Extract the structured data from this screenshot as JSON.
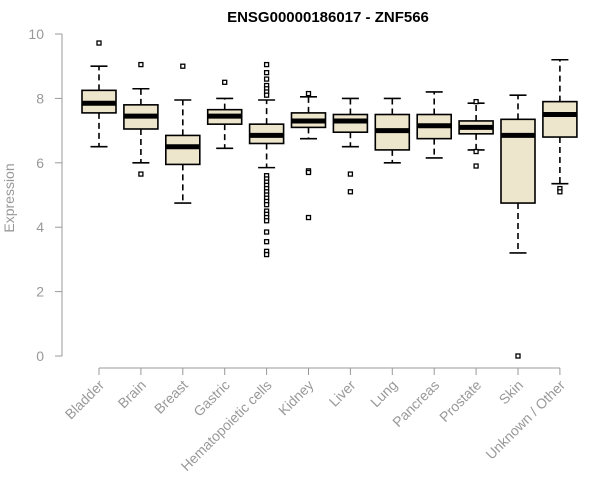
{
  "chart_data": {
    "type": "box",
    "title": "ENSG00000186017 - ZNF566",
    "ylabel": "Expression",
    "xlabel": "",
    "ylim": [
      0,
      10
    ],
    "yticks": [
      0,
      2,
      4,
      6,
      8,
      10
    ],
    "box_fill": "#ede6cc",
    "box_stroke": "#000000",
    "categories": [
      "Bladder",
      "Brain",
      "Breast",
      "Gastric",
      "Hematopoietic cells",
      "Kidney",
      "Liver",
      "Lung",
      "Pancreas",
      "Prostate",
      "Skin",
      "Unknown / Other"
    ],
    "boxes": [
      {
        "whisker_low": 6.5,
        "q1": 7.55,
        "median": 7.85,
        "q3": 8.25,
        "whisker_high": 9.0,
        "outliers": [
          9.72
        ]
      },
      {
        "whisker_low": 6.0,
        "q1": 7.05,
        "median": 7.45,
        "q3": 7.8,
        "whisker_high": 8.3,
        "outliers": [
          9.05,
          5.65
        ]
      },
      {
        "whisker_low": 4.75,
        "q1": 5.95,
        "median": 6.5,
        "q3": 6.85,
        "whisker_high": 7.95,
        "outliers": [
          9.0
        ]
      },
      {
        "whisker_low": 6.45,
        "q1": 7.2,
        "median": 7.45,
        "q3": 7.65,
        "whisker_high": 8.0,
        "outliers": [
          8.5
        ]
      },
      {
        "whisker_low": 5.85,
        "q1": 6.6,
        "median": 6.85,
        "q3": 7.2,
        "whisker_high": 7.95,
        "outliers": [
          9.05,
          8.8,
          8.6,
          8.4,
          8.3,
          8.2,
          8.1,
          5.6,
          5.5,
          5.4,
          5.3,
          5.2,
          5.1,
          5.0,
          4.9,
          4.8,
          4.7,
          4.5,
          4.4,
          4.3,
          4.2,
          3.85,
          3.55,
          3.25,
          3.15
        ]
      },
      {
        "whisker_low": 6.75,
        "q1": 7.1,
        "median": 7.3,
        "q3": 7.55,
        "whisker_high": 8.05,
        "outliers": [
          8.15,
          5.75,
          5.7,
          4.3
        ]
      },
      {
        "whisker_low": 6.5,
        "q1": 6.95,
        "median": 7.3,
        "q3": 7.5,
        "whisker_high": 8.0,
        "outliers": [
          5.65,
          5.1
        ]
      },
      {
        "whisker_low": 6.0,
        "q1": 6.4,
        "median": 7.0,
        "q3": 7.5,
        "whisker_high": 8.0,
        "outliers": []
      },
      {
        "whisker_low": 6.15,
        "q1": 6.75,
        "median": 7.15,
        "q3": 7.5,
        "whisker_high": 8.2,
        "outliers": []
      },
      {
        "whisker_low": 6.4,
        "q1": 6.9,
        "median": 7.1,
        "q3": 7.3,
        "whisker_high": 7.85,
        "outliers": [
          7.9,
          6.35,
          5.9
        ]
      },
      {
        "whisker_low": 3.2,
        "q1": 4.75,
        "median": 6.85,
        "q3": 7.35,
        "whisker_high": 8.1,
        "outliers": [
          0.0
        ]
      },
      {
        "whisker_low": 5.35,
        "q1": 6.8,
        "median": 7.5,
        "q3": 7.9,
        "whisker_high": 9.2,
        "outliers": [
          5.2,
          5.1
        ]
      }
    ]
  }
}
